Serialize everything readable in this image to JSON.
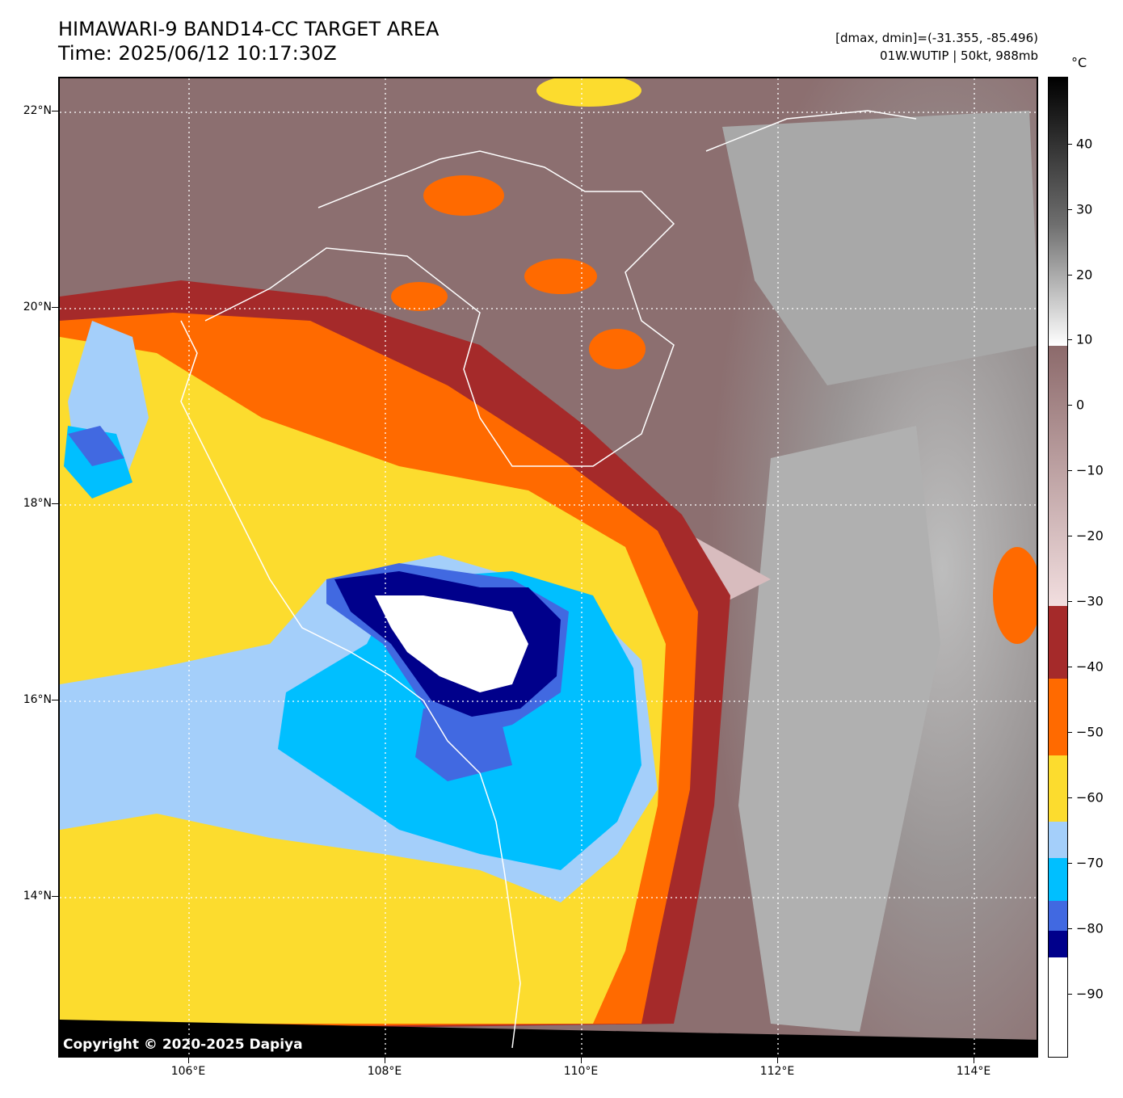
{
  "header": {
    "title": "HIMAWARI-9 BAND14-CC TARGET AREA",
    "time": "Time: 2025/06/12 10:17:30Z",
    "range": "[dmax, dmin]=(-31.355, -85.496)",
    "storm": "01W.WUTIP | 50kt, 988mb"
  },
  "map": {
    "lat_ticks": [
      "22°N",
      "20°N",
      "18°N",
      "16°N",
      "14°N"
    ],
    "lon_ticks": [
      "106°E",
      "108°E",
      "110°E",
      "112°E",
      "114°E"
    ],
    "copyright": "Copyright © 2020-2025 Dapiya",
    "grid": "dotted white"
  },
  "colorbar": {
    "unit": "°C",
    "labels": [
      "40",
      "30",
      "20",
      "10",
      "0",
      "−10",
      "−20",
      "−30",
      "−40",
      "−50",
      "−60",
      "−70",
      "−80",
      "−90"
    ],
    "colors": {
      "warm_gray_top": "#000000",
      "pink_brown": "#8c6f70",
      "dark_red": "#a52a2a",
      "orange": "#ff6a00",
      "yellow": "#fcdc2e",
      "light_blue": "#a4cffa",
      "cyan_blue": "#00bfff",
      "royal_blue": "#4169e1",
      "navy": "#00008b",
      "white": "#ffffff"
    }
  }
}
